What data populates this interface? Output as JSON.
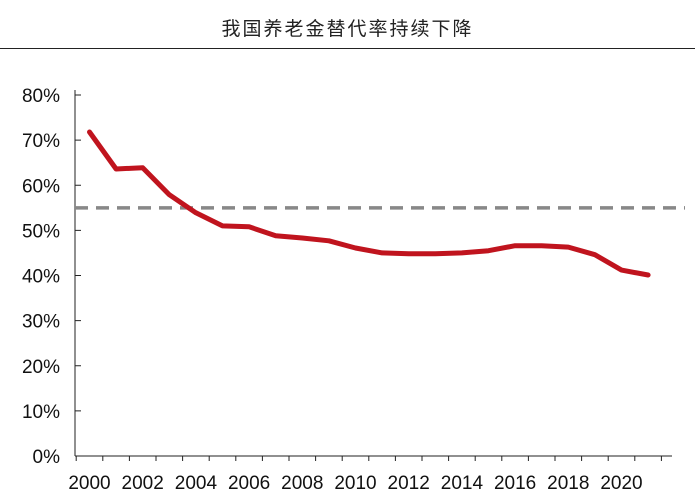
{
  "chart_data": {
    "type": "line",
    "title": "我国养老金替代率持续下降",
    "xlabel": "",
    "ylabel": "",
    "x": [
      2000,
      2001,
      2002,
      2003,
      2004,
      2005,
      2006,
      2007,
      2008,
      2009,
      2010,
      2011,
      2012,
      2013,
      2014,
      2015,
      2016,
      2017,
      2018,
      2019,
      2020,
      2021
    ],
    "series": [
      {
        "name": "养老金替代率",
        "color": "#c0141e",
        "values": [
          71.8,
          63.6,
          63.9,
          57.9,
          53.9,
          51.0,
          50.8,
          48.8,
          48.3,
          47.7,
          46.1,
          45.0,
          44.8,
          44.8,
          45.0,
          45.5,
          46.6,
          46.6,
          46.3,
          44.6,
          41.2,
          40.1
        ]
      }
    ],
    "reference_line": {
      "value": 55,
      "style": "dashed",
      "color": "#888888"
    },
    "ylim": [
      0,
      80
    ],
    "yticks": [
      "0%",
      "10%",
      "20%",
      "30%",
      "40%",
      "50%",
      "60%",
      "70%",
      "80%"
    ],
    "xticks": [
      "2000",
      "2002",
      "2004",
      "2006",
      "2008",
      "2010",
      "2012",
      "2014",
      "2016",
      "2018",
      "2020"
    ],
    "grid": false,
    "legend": "none"
  }
}
